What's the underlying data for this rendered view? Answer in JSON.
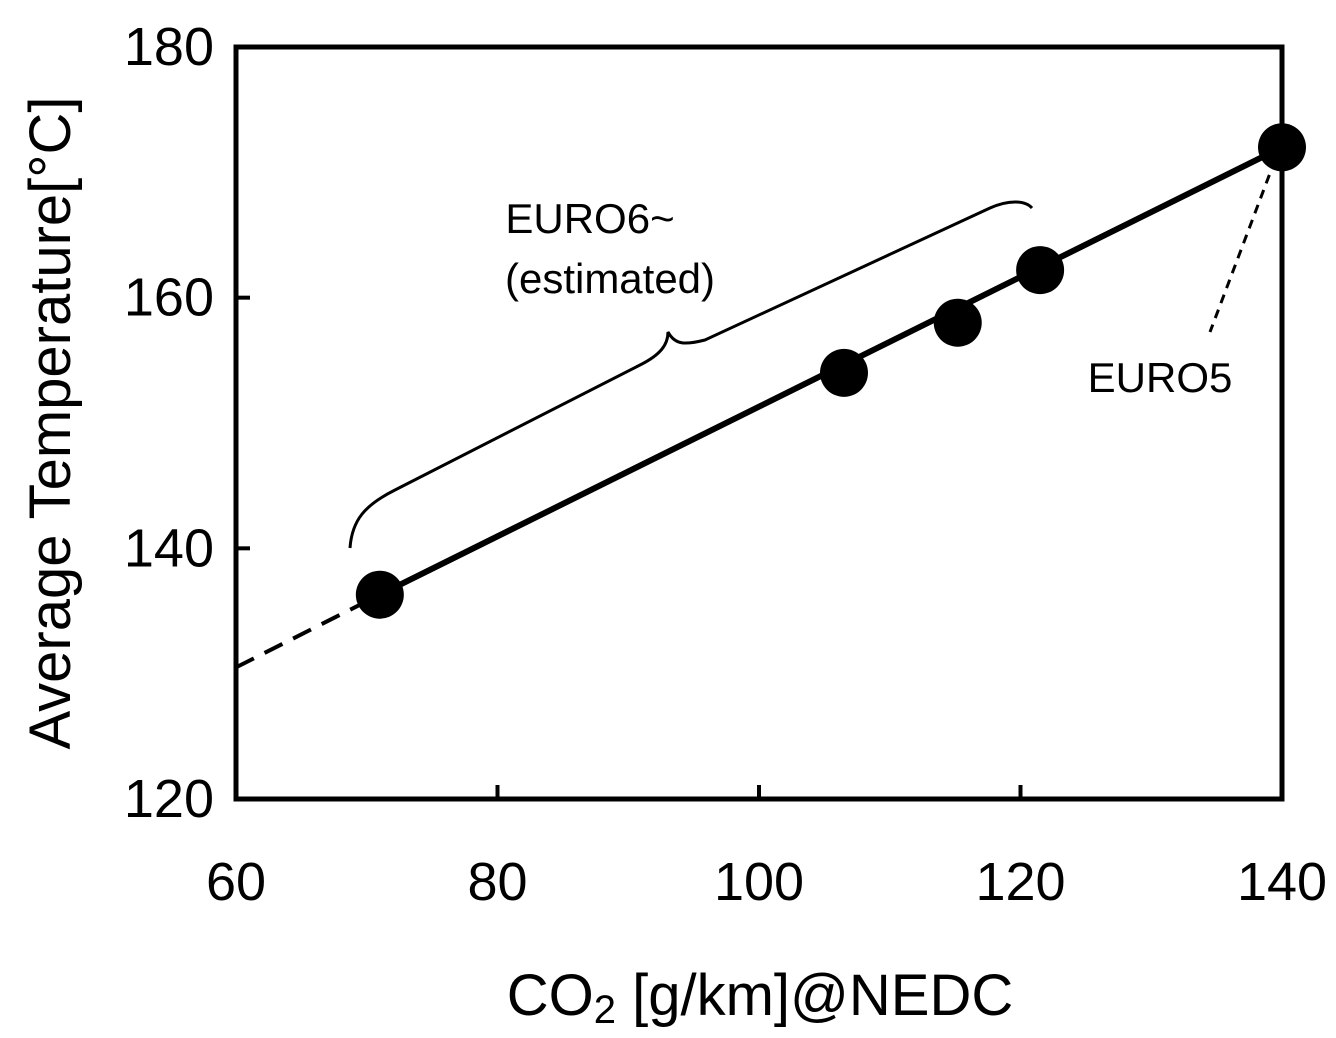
{
  "chart_data": {
    "type": "scatter",
    "xlabel": "CO2 [g/km]@NEDC",
    "xlabel_main": "CO",
    "xlabel_sub": "2",
    "xlabel_rest": " [g/km]@NEDC",
    "ylabel": "Average Temperature[°C]",
    "xlim": [
      60,
      140
    ],
    "ylim": [
      120,
      180
    ],
    "xticks": [
      60,
      80,
      100,
      120,
      140
    ],
    "yticks": [
      120,
      140,
      160,
      180
    ],
    "grid": false,
    "legend": "none",
    "series": [
      {
        "points": [
          {
            "x": 71,
            "y": 136.3
          },
          {
            "x": 106.5,
            "y": 154.0
          },
          {
            "x": 115.2,
            "y": 158.0
          },
          {
            "x": 121.5,
            "y": 162.2
          },
          {
            "x": 140,
            "y": 172.0
          }
        ]
      }
    ],
    "trend_solid": {
      "from": {
        "x": 71,
        "y": 136.3
      },
      "to": {
        "x": 140,
        "y": 172.0
      }
    },
    "trend_dashed": {
      "from": {
        "x": 60,
        "y": 130.5
      },
      "to": {
        "x": 71,
        "y": 136.3
      }
    },
    "annotations": {
      "euro6_line1": "EURO6~",
      "euro6_line2": "(estimated)",
      "euro5": "EURO5"
    },
    "colors": {
      "ink": "#000000",
      "background": "#ffffff"
    }
  }
}
